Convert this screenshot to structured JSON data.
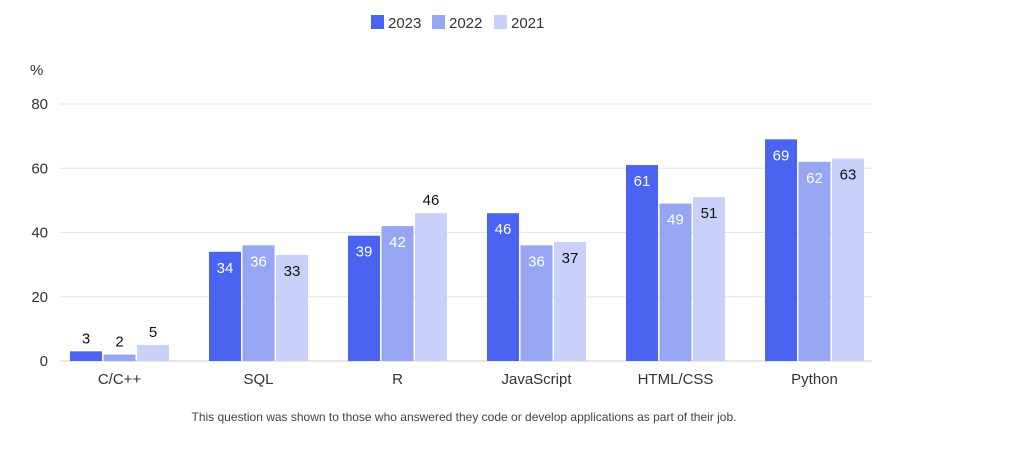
{
  "chart_data": {
    "type": "bar",
    "categories": [
      "C/C++",
      "SQL",
      "R",
      "JavaScript",
      "HTML/CSS",
      "Python"
    ],
    "series": [
      {
        "name": "2023",
        "values": [
          3,
          34,
          39,
          46,
          61,
          69
        ]
      },
      {
        "name": "2022",
        "values": [
          2,
          36,
          42,
          36,
          49,
          62
        ]
      },
      {
        "name": "2021",
        "values": [
          5,
          33,
          46,
          37,
          51,
          63
        ]
      }
    ],
    "ylabel": "%",
    "ylim": [
      0,
      80
    ],
    "yticks": [
      0,
      20,
      40,
      60,
      80
    ],
    "grid": true,
    "legend_position": "top-center",
    "footnote": "This question was shown to those who answered they code or develop applications as part of their job.",
    "colors": {
      "2023": "#4a63f0",
      "2022": "#96a6f3",
      "2021": "#c9d1fb",
      "grid": "#e6e6e6",
      "label_on_dark": "#ffffff",
      "label_dark": "#111111"
    },
    "label_positions": {
      "2023": [
        "above",
        "inside",
        "inside",
        "inside",
        "inside",
        "inside"
      ],
      "2022": [
        "above",
        "inside",
        "inside",
        "inside",
        "inside",
        "inside"
      ],
      "2021": [
        "above",
        "inside",
        "above",
        "inside",
        "inside",
        "inside"
      ]
    }
  }
}
